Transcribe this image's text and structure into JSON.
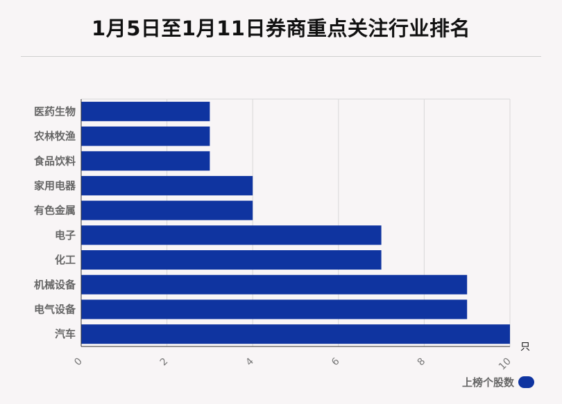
{
  "title": "1月5日至1月11日券商重点关注行业排名",
  "chart_data": {
    "type": "bar",
    "orientation": "horizontal",
    "categories": [
      "医药生物",
      "农林牧渔",
      "食品饮料",
      "家用电器",
      "有色金属",
      "电子",
      "化工",
      "机械设备",
      "电气设备",
      "汽车"
    ],
    "series": [
      {
        "name": "上榜个股数",
        "values": [
          3,
          3,
          3,
          4,
          4,
          7,
          7,
          9,
          9,
          10
        ]
      }
    ],
    "xlim": [
      0,
      10
    ],
    "xticks": [
      0,
      2,
      4,
      6,
      8,
      10
    ],
    "xunit": "只",
    "grid": true,
    "legend_position": "bottom-right",
    "bar_color": "#0f34a0"
  }
}
